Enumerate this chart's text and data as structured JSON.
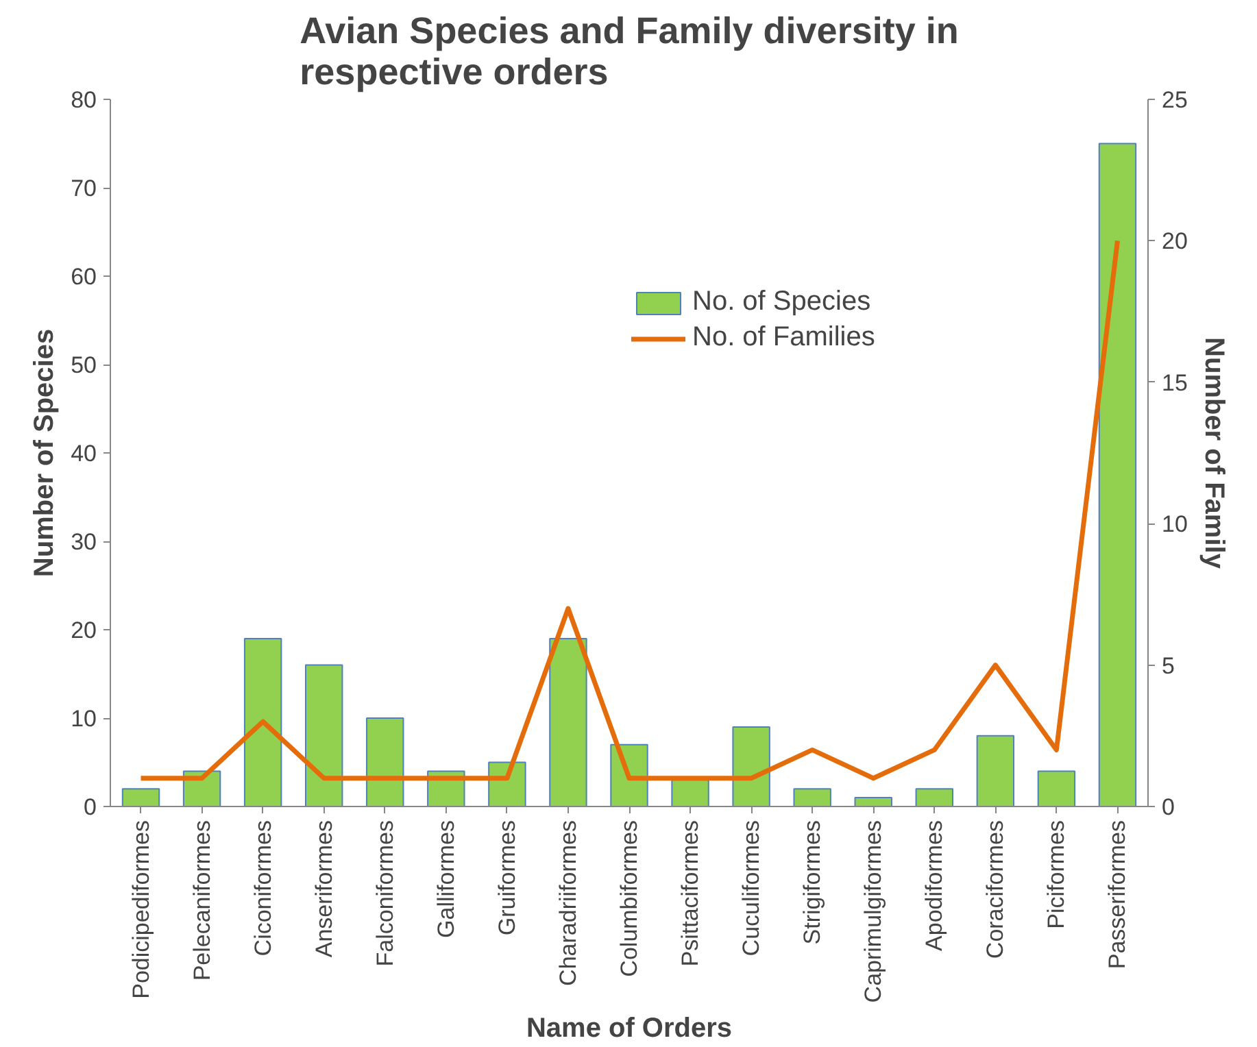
{
  "chart_data": {
    "type": "bar",
    "title": "Avian Species and Family diversity in respective orders",
    "xlabel": "Name of Orders",
    "ylabel": "Number of Species",
    "y2label": "Number of Family",
    "categories": [
      "Podicipediformes",
      "Pelecaniformes",
      "Ciconiformes",
      "Anseriformes",
      "Falconiformes",
      "Galliformes",
      "Gruiformes",
      "Charadriiformes",
      "Columbiformes",
      "Psittaciformes",
      "Cuculiformes",
      "Strigiformes",
      "Caprimulgiformes",
      "Apodiformes",
      "Coraciformes",
      "Piciformes",
      "Passeriformes"
    ],
    "series": [
      {
        "name": "No. of Species",
        "color": "#92d050",
        "values": [
          2,
          4,
          19,
          16,
          10,
          4,
          5,
          19,
          7,
          3,
          9,
          2,
          1,
          2,
          8,
          4,
          75
        ]
      },
      {
        "name": "No. of Families",
        "type": "line",
        "axis": "y2",
        "color": "#e46c0a",
        "values": [
          1,
          1,
          3,
          1,
          1,
          1,
          1,
          7,
          1,
          1,
          1,
          2,
          1,
          2,
          5,
          2,
          20
        ]
      }
    ],
    "ylim": [
      0,
      80
    ],
    "yticks": [
      0,
      10,
      20,
      30,
      40,
      50,
      60,
      70,
      80
    ],
    "y2lim": [
      0,
      25
    ],
    "y2ticks": [
      0,
      5,
      10,
      15,
      20,
      25
    ],
    "grid": false,
    "legend": "top right"
  }
}
